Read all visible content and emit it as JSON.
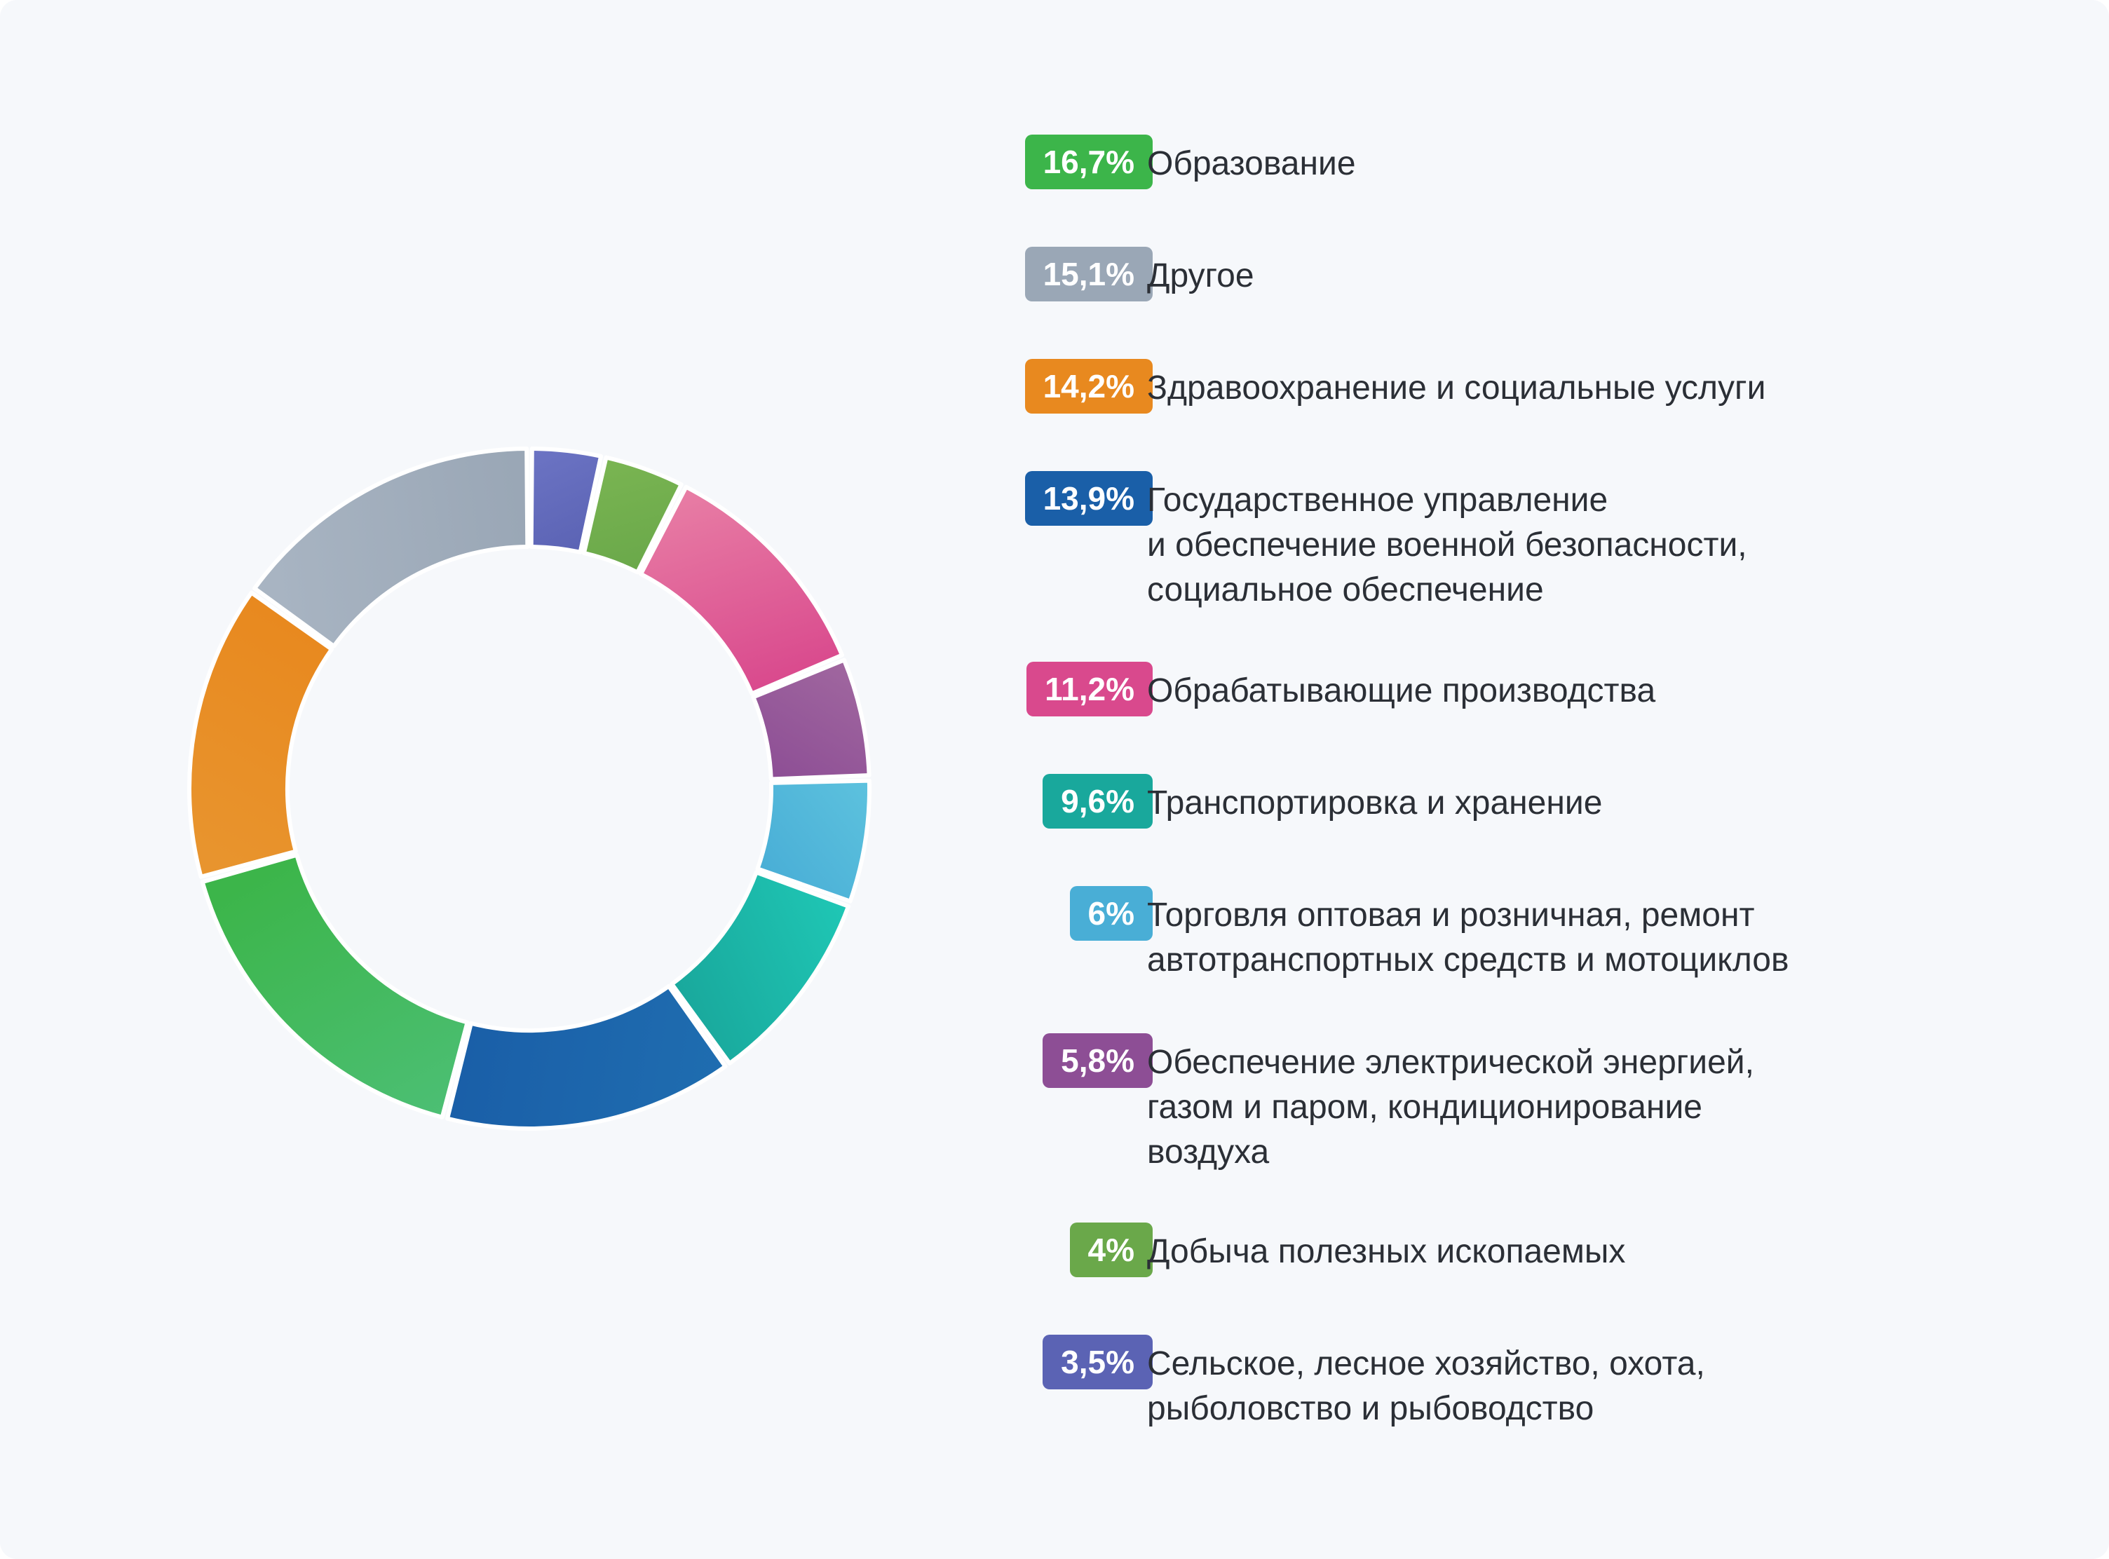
{
  "chart_data": {
    "type": "pie",
    "donut": true,
    "slices": [
      {
        "label": "Образование",
        "value": 16.7,
        "value_text": "16,7%",
        "color": "#3cb54a",
        "color_light": "#4cbf74"
      },
      {
        "label": "Другое",
        "value": 15.1,
        "value_text": "15,1%",
        "color": "#9aa7b6",
        "color_light": "#a9b5c3"
      },
      {
        "label": "Здравоохранение и социальные услуги",
        "value": 14.2,
        "value_text": "14,2%",
        "color": "#e8891f",
        "color_light": "#e8952f"
      },
      {
        "label": "Государственное управление\nи обеспечение военной безопасности,\nсоциальное обеспечение",
        "value": 13.9,
        "value_text": "13,9%",
        "color": "#1a5fa8",
        "color_light": "#1f6db0"
      },
      {
        "label": "Обрабатывающие производства",
        "value": 11.2,
        "value_text": "11,2%",
        "color": "#d9498d",
        "color_light": "#e87ea5"
      },
      {
        "label": "Транспортировка и хранение",
        "value": 9.6,
        "value_text": "9,6%",
        "color": "#19a89c",
        "color_light": "#1fc7b5"
      },
      {
        "label": "Торговля оптовая и розничная, ремонт\nавтотранспортных средств и мотоциклов",
        "value": 6,
        "value_text": "6%",
        "color": "#49aed6",
        "color_light": "#5dc2de"
      },
      {
        "label": "Обеспечение электрической энергией,\nгазом и паром, кондиционирование\nвоздуха",
        "value": 5.8,
        "value_text": "5,8%",
        "color": "#8d4e95",
        "color_light": "#a0679f"
      },
      {
        "label": "Добыча полезных ископаемых",
        "value": 4,
        "value_text": "4%",
        "color": "#6aa84a",
        "color_light": "#7ab552"
      },
      {
        "label": "Сельское, лесное хозяйство, охота,\nрыболовство и рыбоводство",
        "value": 3.5,
        "value_text": "3,5%",
        "color": "#5b63b4",
        "color_light": "#6c74c4"
      }
    ],
    "chart_order_clockwise_from_top": [
      "Сельское, лесное хозяйство, охота,\nрыболовство и рыбоводство",
      "Добыча полезных ископаемых",
      "Обрабатывающие производства",
      "Обеспечение электрической энергией,\nгазом и паром, кондиционирование\nвоздуха",
      "Торговля оптовая и розничная, ремонт\nавтотранспортных средств и мотоциклов",
      "Транспортировка и хранение",
      "Государственное управление\nи обеспечение военной безопасности,\nсоциальное обеспечение",
      "Образование",
      "Здравоохранение и социальные услуги",
      "Другое"
    ],
    "legend_placement": "right"
  }
}
